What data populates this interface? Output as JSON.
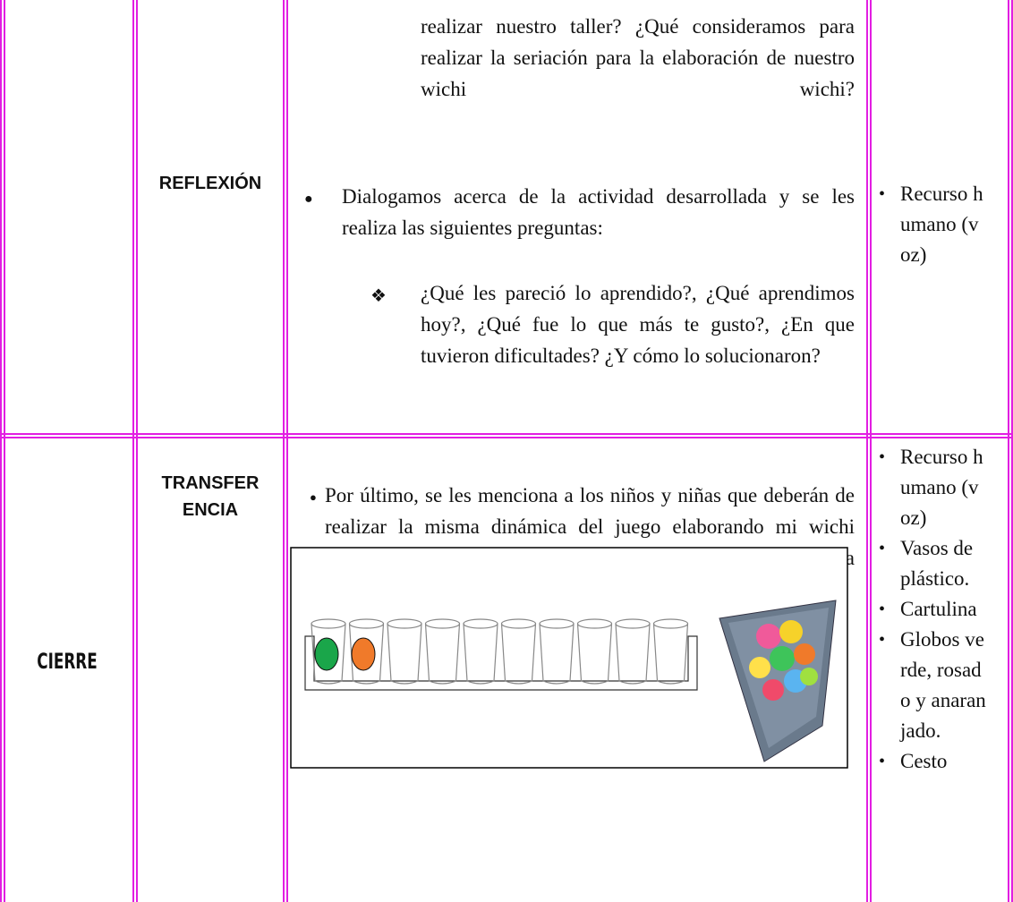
{
  "table": {
    "rows": [
      {
        "stage": "REFLEXIÓN",
        "activity": {
          "continuation": "realizar nuestro taller? ¿Qué consideramos para realizar la seriación para la elaboración de nuestro wichi wichi?",
          "items": [
            {
              "text": "Dialogamos acerca de la actividad desarrollada y se les realiza las siguientes preguntas:",
              "subitems": [
                "¿Qué les pareció lo aprendido?, ¿Qué aprendimos hoy?, ¿Qué fue lo que más te gusto?, ¿En que tuvieron dificultades? ¿Y cómo lo solucionaron?"
              ]
            }
          ]
        },
        "resources": [
          "Recurso humano (voz)"
        ]
      },
      {
        "phase": "CIERRE",
        "stage_lines": [
          "TRANSFER",
          "ENCIA"
        ],
        "activity": {
          "items": [
            {
              "text": "Por último, se les menciona a los niños y niñas que deberán de realizar la misma dinámica del juego elaborando mi wichi wichi, pero ahora utilizando los globos y ubicándolos en la banda de los vasitos, de acuerdo al patrón."
            }
          ]
        },
        "resources": [
          "Recurso humano (voz)",
          "Vasos de plástico.",
          "Cartulina",
          "Globos verde, rosado y anaranjado.",
          "Cesto"
        ]
      }
    ]
  }
}
